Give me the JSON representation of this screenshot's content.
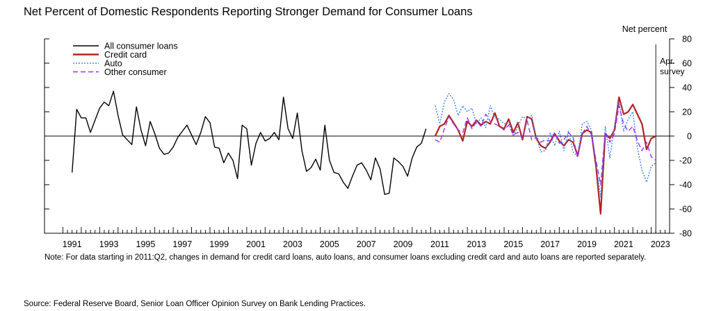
{
  "chart_data": {
    "type": "line",
    "title": "Net Percent of Domestic Respondents Reporting Stronger Demand for Consumer Loans",
    "ylabel": "Net percent",
    "ylim": [
      -80,
      80
    ],
    "yticks": [
      80,
      60,
      40,
      20,
      0,
      -20,
      -40,
      -60,
      -80
    ],
    "xlim": [
      1990.0,
      2024.0
    ],
    "xticks": [
      "1991",
      "1993",
      "1995",
      "1997",
      "1999",
      "2001",
      "2003",
      "2005",
      "2007",
      "2009",
      "2011",
      "2013",
      "2015",
      "2017",
      "2019",
      "2021",
      "2023"
    ],
    "grid": false,
    "legend_position": "top-left",
    "annotation": "Apr.\nsurvey",
    "annotation_x": 2023.25,
    "series": [
      {
        "name": "All consumer loans",
        "color": "#000000",
        "dash": "solid",
        "x": [
          1991.5,
          1991.75,
          1992.0,
          1992.25,
          1992.5,
          1992.75,
          1993.0,
          1993.25,
          1993.5,
          1993.75,
          1994.0,
          1994.25,
          1994.5,
          1994.75,
          1995.0,
          1995.25,
          1995.5,
          1995.75,
          1996.0,
          1996.25,
          1996.5,
          1996.75,
          1997.0,
          1997.25,
          1997.5,
          1997.75,
          1998.0,
          1998.25,
          1998.5,
          1998.75,
          1999.0,
          1999.25,
          1999.5,
          1999.75,
          2000.0,
          2000.25,
          2000.5,
          2000.75,
          2001.0,
          2001.25,
          2001.5,
          2001.75,
          2002.0,
          2002.25,
          2002.5,
          2002.75,
          2003.0,
          2003.25,
          2003.5,
          2003.75,
          2004.0,
          2004.25,
          2004.5,
          2004.75,
          2005.0,
          2005.25,
          2005.5,
          2005.75,
          2006.0,
          2006.25,
          2006.5,
          2006.75,
          2007.0,
          2007.25,
          2007.5,
          2007.75,
          2008.0,
          2008.25,
          2008.5,
          2008.75,
          2009.0,
          2009.25,
          2009.5,
          2009.75,
          2010.0,
          2010.25,
          2010.5,
          2010.75
        ],
        "y": [
          -30,
          22,
          15,
          15,
          3,
          13,
          23,
          28,
          25,
          37,
          17,
          1,
          -3,
          -7,
          24,
          5,
          -8,
          12,
          2,
          -10,
          -15,
          -14,
          -9,
          -1,
          4,
          9,
          1,
          -7,
          3,
          16,
          11,
          -9,
          -10,
          -22,
          -14,
          -20,
          -35,
          9,
          6,
          -24,
          -6,
          3,
          -4,
          -2,
          3,
          -3,
          32,
          6,
          -2,
          19,
          -12,
          -29,
          -26,
          -19,
          -28,
          9,
          -20,
          -30,
          -31,
          -38,
          -43,
          -33,
          -24,
          -22,
          -28,
          -36,
          -18,
          -27,
          -48,
          -47,
          -18,
          -21,
          -25,
          -33,
          -18,
          -9,
          -6,
          6
        ]
      },
      {
        "name": "Credit card",
        "color": "#b22222",
        "dash": "solid",
        "x": [
          2011.25,
          2011.5,
          2011.75,
          2012.0,
          2012.25,
          2012.5,
          2012.75,
          2013.0,
          2013.25,
          2013.5,
          2013.75,
          2014.0,
          2014.25,
          2014.5,
          2014.75,
          2015.0,
          2015.25,
          2015.5,
          2015.75,
          2016.0,
          2016.25,
          2016.5,
          2016.75,
          2017.0,
          2017.25,
          2017.5,
          2017.75,
          2018.0,
          2018.25,
          2018.5,
          2018.75,
          2019.0,
          2019.25,
          2019.5,
          2019.75,
          2020.0,
          2020.25,
          2020.5,
          2020.75,
          2021.0,
          2021.25,
          2021.5,
          2021.75,
          2022.0,
          2022.25,
          2022.5,
          2022.75,
          2023.0,
          2023.25
        ],
        "y": [
          0,
          8,
          10,
          17,
          11,
          5,
          -4,
          12,
          8,
          13,
          9,
          12,
          10,
          19,
          8,
          6,
          14,
          3,
          11,
          -3,
          16,
          14,
          -2,
          -8,
          -10,
          -5,
          2,
          -4,
          -8,
          -3,
          -5,
          -16,
          2,
          5,
          3,
          -25,
          -64,
          2,
          -2,
          5,
          32,
          18,
          20,
          26,
          18,
          10,
          -11,
          -2,
          0
        ]
      },
      {
        "name": "Auto",
        "color": "#3b82f6",
        "dash": "2,2",
        "x": [
          2011.25,
          2011.5,
          2011.75,
          2012.0,
          2012.25,
          2012.5,
          2012.75,
          2013.0,
          2013.25,
          2013.5,
          2013.75,
          2014.0,
          2014.25,
          2014.5,
          2014.75,
          2015.0,
          2015.25,
          2015.5,
          2015.75,
          2016.0,
          2016.25,
          2016.5,
          2016.75,
          2017.0,
          2017.25,
          2017.5,
          2017.75,
          2018.0,
          2018.25,
          2018.5,
          2018.75,
          2019.0,
          2019.25,
          2019.5,
          2019.75,
          2020.0,
          2020.25,
          2020.5,
          2020.75,
          2021.0,
          2021.25,
          2021.5,
          2021.75,
          2022.0,
          2022.25,
          2022.5,
          2022.75,
          2023.0,
          2023.25
        ],
        "y": [
          25,
          10,
          28,
          35,
          30,
          17,
          25,
          20,
          23,
          10,
          15,
          7,
          25,
          15,
          14,
          10,
          11,
          0,
          8,
          16,
          14,
          17,
          -1,
          -13,
          -12,
          3,
          -8,
          4,
          -12,
          4,
          -13,
          -17,
          10,
          12,
          5,
          -22,
          -50,
          8,
          -18,
          8,
          28,
          4,
          14,
          20,
          -10,
          -28,
          -38,
          -25,
          -22
        ]
      },
      {
        "name": "Other consumer",
        "color": "#9b30ff",
        "dash": "7,4",
        "x": [
          2011.25,
          2011.5,
          2011.75,
          2012.0,
          2012.25,
          2012.5,
          2012.75,
          2013.0,
          2013.25,
          2013.5,
          2013.75,
          2014.0,
          2014.25,
          2014.5,
          2014.75,
          2015.0,
          2015.25,
          2015.5,
          2015.75,
          2016.0,
          2016.25,
          2016.5,
          2016.75,
          2017.0,
          2017.25,
          2017.5,
          2017.75,
          2018.0,
          2018.25,
          2018.5,
          2018.75,
          2019.0,
          2019.25,
          2019.5,
          2019.75,
          2020.0,
          2020.25,
          2020.5,
          2020.75,
          2021.0,
          2021.25,
          2021.5,
          2021.75,
          2022.0,
          2022.25,
          2022.5,
          2022.75,
          2023.0,
          2023.25
        ],
        "y": [
          -3,
          -5,
          6,
          16,
          10,
          5,
          3,
          15,
          6,
          12,
          8,
          18,
          12,
          10,
          8,
          5,
          9,
          1,
          3,
          -2,
          13,
          -3,
          -1,
          -5,
          -3,
          -4,
          3,
          -6,
          -3,
          3,
          -1,
          -18,
          2,
          8,
          1,
          -20,
          -40,
          3,
          -5,
          2,
          25,
          10,
          4,
          8,
          -4,
          -12,
          -5,
          -17,
          -20
        ]
      }
    ]
  },
  "note": "Note: For data starting in 2011:Q2, changes in demand for credit card loans, auto loans, and consumer loans excluding credit card and auto loans are reported separately.",
  "source": "Source:  Federal Reserve Board, Senior Loan Officer Opinion Survey on Bank Lending Practices."
}
